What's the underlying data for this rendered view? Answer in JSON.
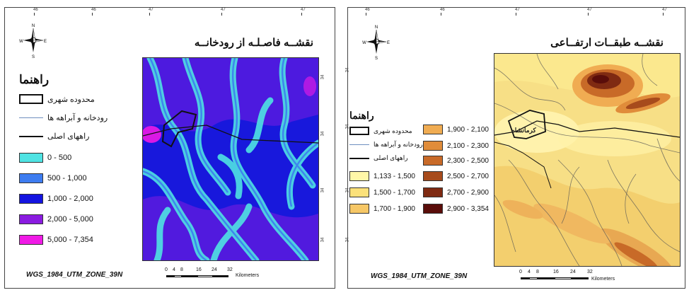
{
  "left_map": {
    "title": "نقشــه فاصـلـه از رودخانــه",
    "legend_title": "راهنما",
    "legend_items": [
      {
        "label": "محدوده شهری",
        "kind": "box"
      },
      {
        "label": "رودخانه و آبراهه ها",
        "kind": "line",
        "color": "#6e8fbf"
      },
      {
        "label": "راههای اصلی",
        "kind": "line",
        "color": "#111111"
      }
    ],
    "classes": [
      {
        "label": "0 - 500",
        "color": "#4fe3e3"
      },
      {
        "label": "500 - 1,000",
        "color": "#3d7cf0"
      },
      {
        "label": "1,000 - 2,000",
        "color": "#1414e0"
      },
      {
        "label": "2,000 - 5,000",
        "color": "#8a1be0"
      },
      {
        "label": "5,000 - 7,354",
        "color": "#f01ae6"
      }
    ],
    "projection": "WGS_1984_UTM_ZONE_39N",
    "top_ticks": [
      "46",
      "46",
      "47",
      "47",
      "47"
    ],
    "side_ticks": [
      "34",
      "34",
      "34",
      "34"
    ],
    "scale_labels": [
      "0",
      "4",
      "8",
      "16",
      "24",
      "32"
    ],
    "scale_unit": "Kilometers"
  },
  "right_map": {
    "title": "نقشــه طبقــات ارتفــاعی",
    "legend_title": "راهنما",
    "legend_items": [
      {
        "label": "محدوده شهری",
        "kind": "box"
      },
      {
        "label": "رودخانه و آبراهه ها",
        "kind": "line",
        "color": "#6e8fbf"
      },
      {
        "label": "راههای اصلی",
        "kind": "line",
        "color": "#111111"
      }
    ],
    "classes_left": [
      {
        "label": "1,133 - 1,500",
        "color": "#fff7a8"
      },
      {
        "label": "1,500 - 1,700",
        "color": "#fbe17a"
      },
      {
        "label": "1,700 - 1,900",
        "color": "#f6c766"
      }
    ],
    "classes_right": [
      {
        "label": "1,900 - 2,100",
        "color": "#f0ac52"
      },
      {
        "label": "2,100 - 2,300",
        "color": "#e08c3a"
      },
      {
        "label": "2,300 - 2,500",
        "color": "#c86a28"
      },
      {
        "label": "2,500 - 2,700",
        "color": "#a74b1c"
      },
      {
        "label": "2,700 - 2,900",
        "color": "#7f2a12"
      },
      {
        "label": "2,900 - 3,354",
        "color": "#5a0d0a"
      }
    ],
    "city_label": "کرمانشاه",
    "projection": "WGS_1984_UTM_ZONE_39N",
    "top_ticks": [
      "46",
      "46",
      "47",
      "47",
      "47"
    ],
    "side_ticks": [
      "34",
      "34",
      "34",
      "34"
    ],
    "scale_labels": [
      "0",
      "4",
      "8",
      "16",
      "24",
      "32"
    ],
    "scale_unit": "Kilometers"
  }
}
